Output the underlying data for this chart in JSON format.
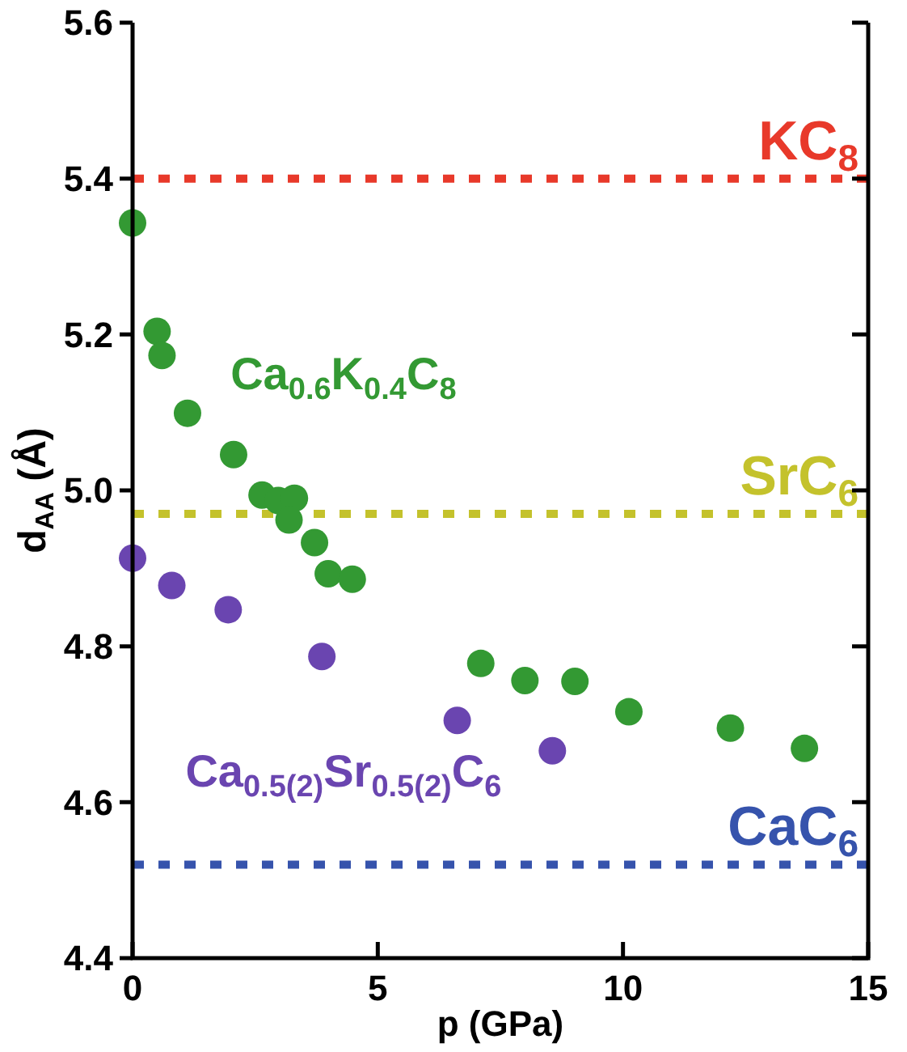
{
  "chart_data": {
    "type": "scatter",
    "xlabel": "p (GPa)",
    "ylabel": "d$_{AA}$ (Å)",
    "xlim": [
      0,
      15
    ],
    "ylim": [
      4.4,
      5.6
    ],
    "xticks": [
      0,
      5,
      10,
      15
    ],
    "yticks": [
      {
        "value": 4.4,
        "label": "4.4"
      },
      {
        "value": 4.6,
        "label": "4.6"
      },
      {
        "value": 4.8,
        "label": "4.8"
      },
      {
        "value": 5.0,
        "label": "5.0"
      },
      {
        "value": 5.2,
        "label": "5.2"
      },
      {
        "value": 5.4,
        "label": "5.4"
      },
      {
        "value": 5.6,
        "label": "5.6"
      }
    ],
    "grid": false,
    "marker": "circle",
    "series": [
      {
        "name": "Ca$_{0.6}$K$_{0.4}$C$_{8}$",
        "color": "#339933",
        "x": [
          0,
          0.5,
          0.6,
          1.12,
          2.06,
          2.64,
          2.97,
          3.3,
          3.19,
          3.71,
          3.99,
          4.48,
          7.1,
          8.0,
          9.02,
          10.12,
          12.19,
          13.7
        ],
        "values": [
          5.343,
          5.204,
          5.173,
          5.099,
          5.046,
          4.994,
          4.987,
          4.99,
          4.962,
          4.933,
          4.893,
          4.886,
          4.778,
          4.756,
          4.755,
          4.716,
          4.695,
          4.669
        ]
      },
      {
        "name": "Ca$_{0.5(2)}$Sr$_{0.5(2)}$C$_{6}$",
        "color": "#6a45b0",
        "x": [
          0,
          0.8,
          1.95,
          3.86,
          6.62,
          8.56
        ],
        "values": [
          4.913,
          4.878,
          4.847,
          4.787,
          4.705,
          4.666
        ]
      }
    ],
    "ref_lines": [
      {
        "axis": "y",
        "value": 5.4,
        "label": "KC$_{8}$",
        "color": "#e8392a",
        "line_style": "dotted"
      },
      {
        "axis": "y",
        "value": 4.97,
        "label": "SrC$_{6}$",
        "color": "#c4c22c",
        "line_style": "dotted"
      },
      {
        "axis": "y",
        "value": 4.52,
        "label": "CaC$_{6}$",
        "color": "#3653ac",
        "line_style": "dotted"
      }
    ]
  }
}
